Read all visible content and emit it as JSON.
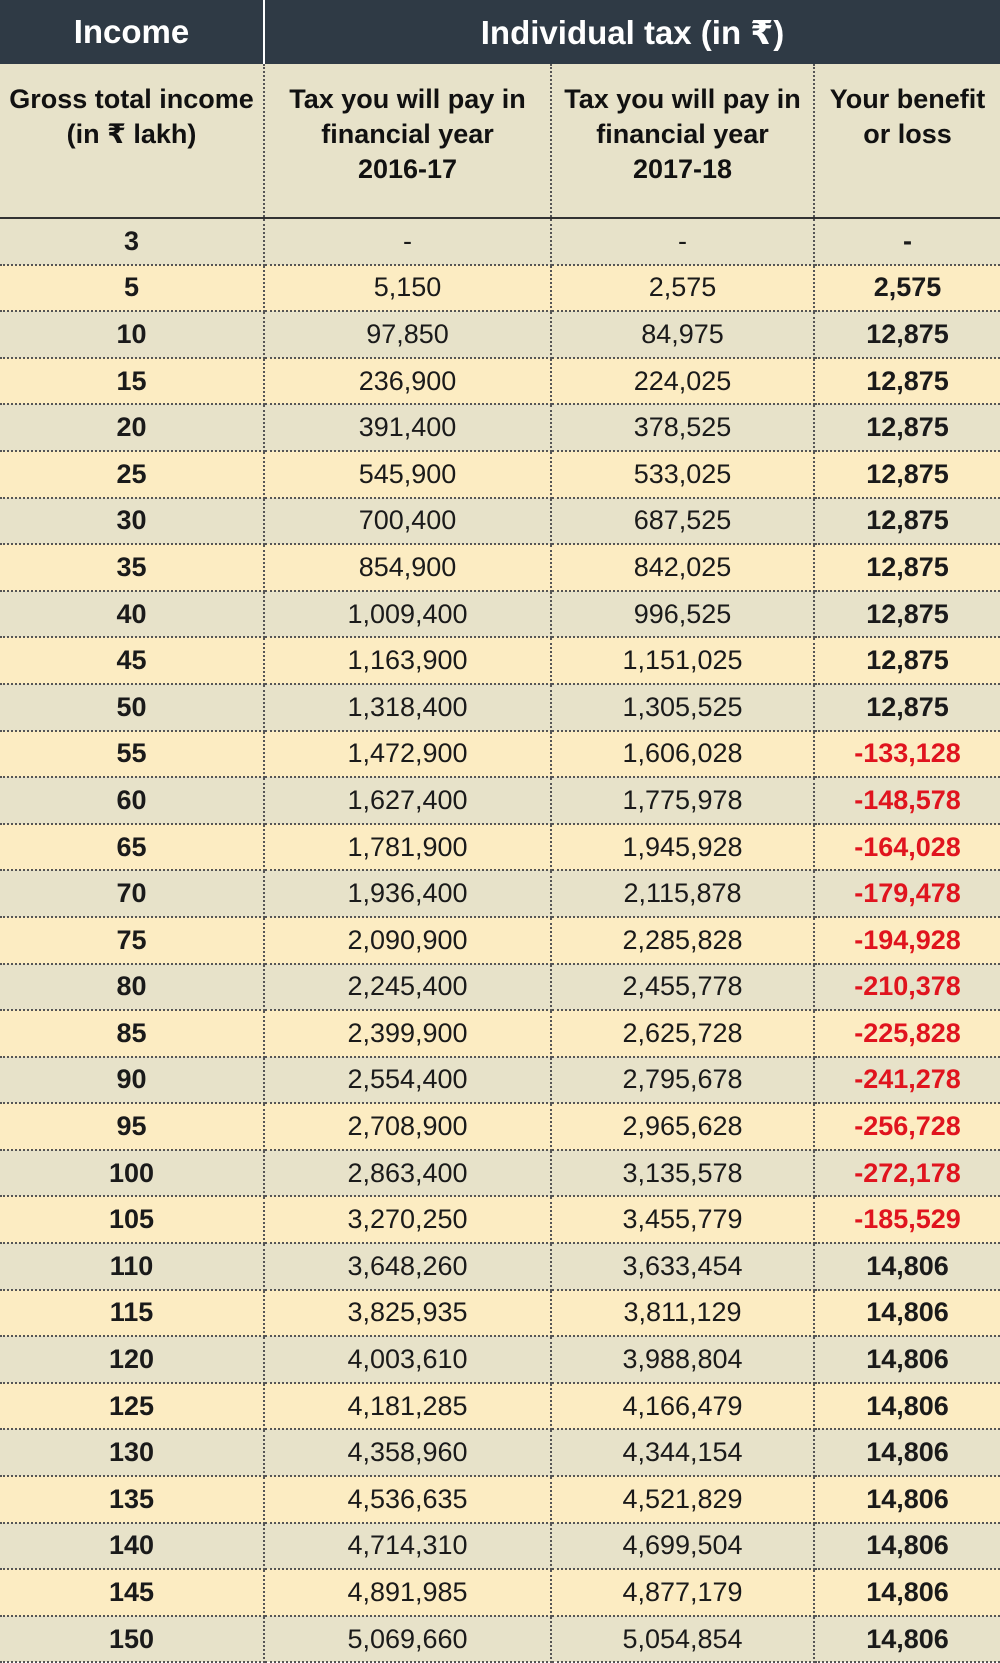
{
  "header": {
    "income_group": "Income",
    "tax_group": "Individual tax (in ₹)",
    "columns": [
      [
        "Gross total income",
        "(in ₹ lakh)"
      ],
      [
        "Tax you will pay in",
        "financial year",
        "2016-17"
      ],
      [
        "Tax you will pay in",
        "financial year",
        "2017-18"
      ],
      [
        "Your benefit",
        "or loss"
      ]
    ]
  },
  "chart_data": {
    "type": "table",
    "columns": [
      "Gross total income (in ₹ lakh)",
      "Tax you will pay in financial year 2016-17",
      "Tax you will pay in financial year 2017-18",
      "Your benefit or loss"
    ],
    "rows": [
      [
        "3",
        "-",
        "-",
        "-"
      ],
      [
        "5",
        "5,150",
        "2,575",
        "2,575"
      ],
      [
        "10",
        "97,850",
        "84,975",
        "12,875"
      ],
      [
        "15",
        "236,900",
        "224,025",
        "12,875"
      ],
      [
        "20",
        "391,400",
        "378,525",
        "12,875"
      ],
      [
        "25",
        "545,900",
        "533,025",
        "12,875"
      ],
      [
        "30",
        "700,400",
        "687,525",
        "12,875"
      ],
      [
        "35",
        "854,900",
        "842,025",
        "12,875"
      ],
      [
        "40",
        "1,009,400",
        "996,525",
        "12,875"
      ],
      [
        "45",
        "1,163,900",
        "1,151,025",
        "12,875"
      ],
      [
        "50",
        "1,318,400",
        "1,305,525",
        "12,875"
      ],
      [
        "55",
        "1,472,900",
        "1,606,028",
        "-133,128"
      ],
      [
        "60",
        "1,627,400",
        "1,775,978",
        "-148,578"
      ],
      [
        "65",
        "1,781,900",
        "1,945,928",
        "-164,028"
      ],
      [
        "70",
        "1,936,400",
        "2,115,878",
        "-179,478"
      ],
      [
        "75",
        "2,090,900",
        "2,285,828",
        "-194,928"
      ],
      [
        "80",
        "2,245,400",
        "2,455,778",
        "-210,378"
      ],
      [
        "85",
        "2,399,900",
        "2,625,728",
        "-225,828"
      ],
      [
        "90",
        "2,554,400",
        "2,795,678",
        "-241,278"
      ],
      [
        "95",
        "2,708,900",
        "2,965,628",
        "-256,728"
      ],
      [
        "100",
        "2,863,400",
        "3,135,578",
        "-272,178"
      ],
      [
        "105",
        "3,270,250",
        "3,455,779",
        "-185,529"
      ],
      [
        "110",
        "3,648,260",
        "3,633,454",
        "14,806"
      ],
      [
        "115",
        "3,825,935",
        "3,811,129",
        "14,806"
      ],
      [
        "120",
        "4,003,610",
        "3,988,804",
        "14,806"
      ],
      [
        "125",
        "4,181,285",
        "4,166,479",
        "14,806"
      ],
      [
        "130",
        "4,358,960",
        "4,344,154",
        "14,806"
      ],
      [
        "135",
        "4,536,635",
        "4,521,829",
        "14,806"
      ],
      [
        "140",
        "4,714,310",
        "4,699,504",
        "14,806"
      ],
      [
        "145",
        "4,891,985",
        "4,877,179",
        "14,806"
      ],
      [
        "150",
        "5,069,660",
        "5,054,854",
        "14,806"
      ]
    ]
  },
  "colors": {
    "header_bg": "#2f3a45",
    "row_light": "#e7e2c9",
    "row_warm": "#fcecc2",
    "loss_red": "#e0141e"
  }
}
